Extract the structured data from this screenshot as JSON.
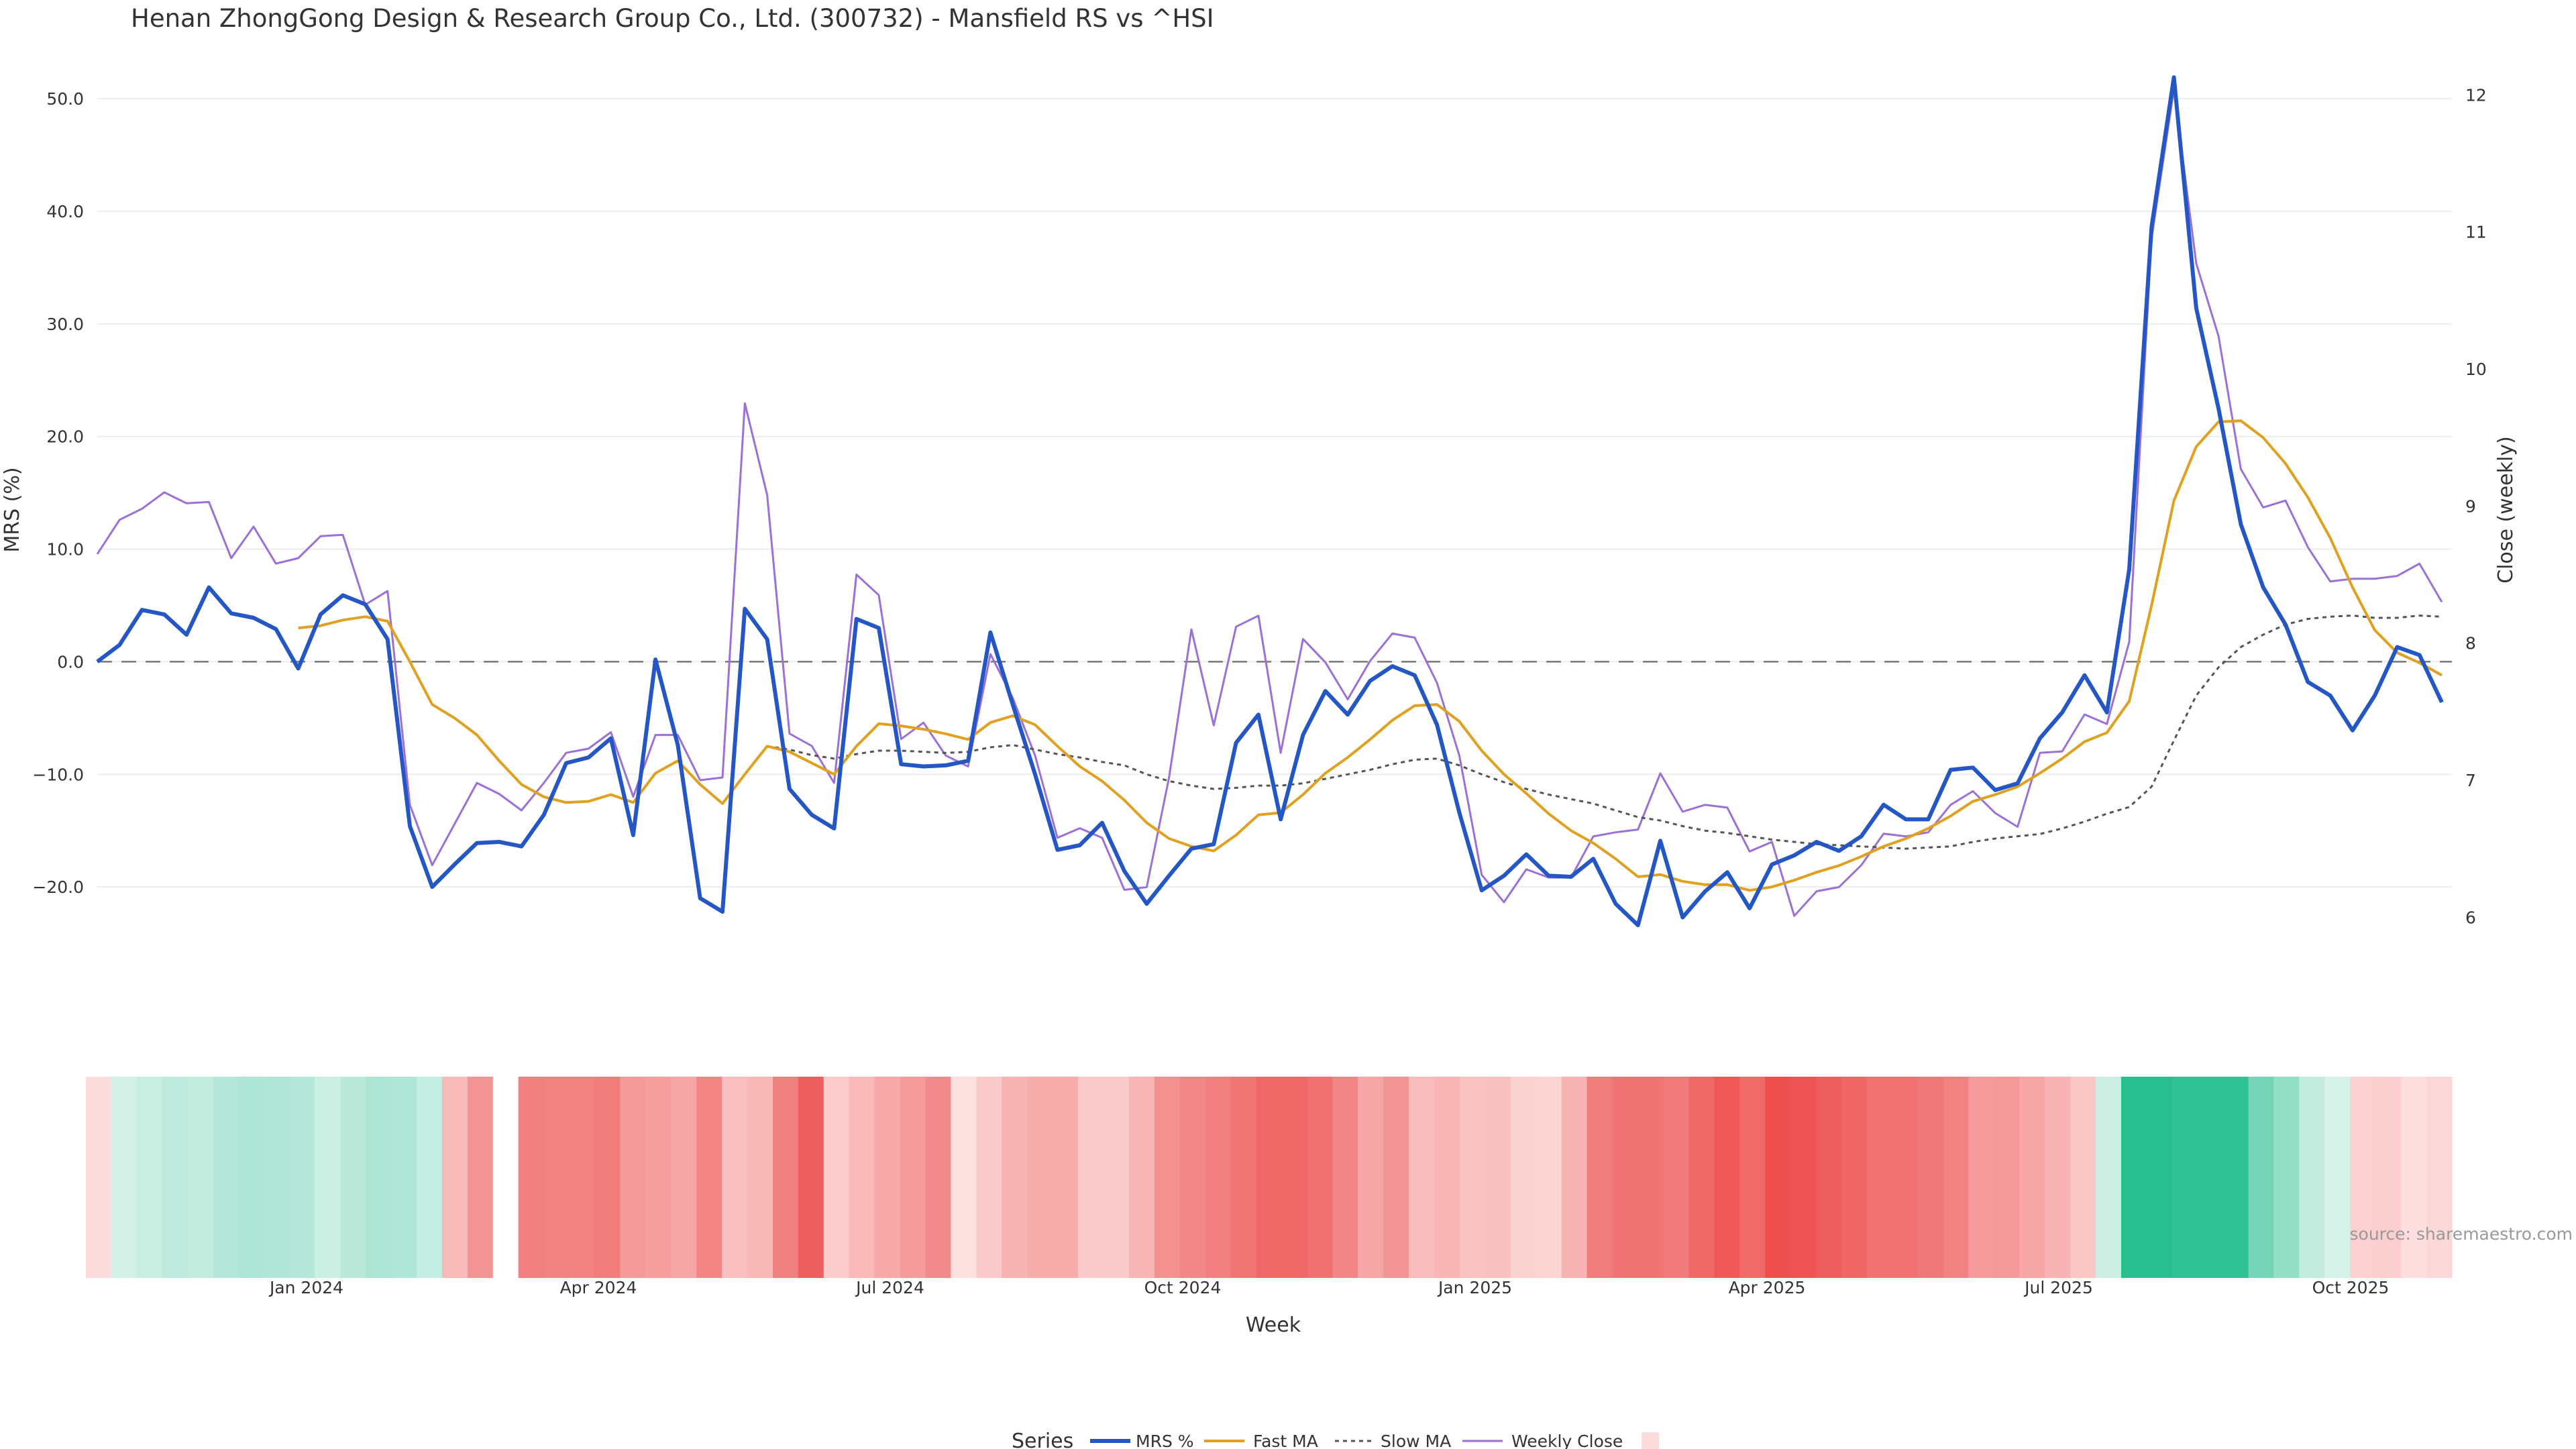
{
  "chart_data": {
    "type": "line",
    "title": "Henan ZhongGong Design & Research Group Co., Ltd. (300732) - Mansfield RS vs ^HSI",
    "xlabel": "Week",
    "ylabel_left": "MRS (%)",
    "ylabel_right": "Close (weekly)",
    "ylim_left": [
      -30,
      54
    ],
    "ylim_right": [
      5.4,
      12.3
    ],
    "yticks_left": [
      "50.0",
      "40.0",
      "30.0",
      "20.0",
      "10.0",
      "0.0",
      "−10.0",
      "−20.0"
    ],
    "yticks_right": [
      "12",
      "11",
      "10",
      "9",
      "8",
      "7",
      "6"
    ],
    "xtick_labels": [
      "Jan 2024",
      "Apr 2024",
      "Jul 2024",
      "Oct 2024",
      "Jan 2025",
      "Apr 2025",
      "Jul 2025",
      "Oct 2025"
    ],
    "zero_line": 0,
    "grid": true,
    "legend": {
      "title": "Series",
      "placement": "bottom-center"
    },
    "source": "source: sharemaestro.com",
    "series": [
      {
        "name": "MRS %",
        "axis": "left",
        "color": "#2457c5",
        "values": [
          0.0,
          1.5,
          4.6,
          4.2,
          2.4,
          6.6,
          4.3,
          3.9,
          2.9,
          -0.6,
          4.2,
          5.9,
          5.1,
          2.0,
          -14.6,
          -20.0,
          -18.0,
          -16.1,
          -16.0,
          -16.4,
          -13.6,
          -9.0,
          -8.5,
          -6.8,
          -15.4,
          0.2,
          -7.4,
          -21.0,
          -22.2,
          4.7,
          2.0,
          -11.3,
          -13.6,
          -14.8,
          3.8,
          3.0,
          -9.1,
          -9.3,
          -9.2,
          -8.8,
          2.6,
          -3.8,
          -10.0,
          -16.7,
          -16.3,
          -14.3,
          -18.6,
          -21.5,
          -19.0,
          -16.6,
          -16.2,
          -7.2,
          -4.7,
          -14.0,
          -6.5,
          -2.6,
          -4.7,
          -1.7,
          -0.4,
          -1.2,
          -5.6,
          -13.4,
          -20.3,
          -19.0,
          -17.1,
          -19.0,
          -19.1,
          -17.5,
          -21.5,
          -23.4,
          -15.9,
          -22.7,
          -20.4,
          -18.7,
          -21.9,
          -18.0,
          -17.2,
          -16.0,
          -16.8,
          -15.5,
          -12.7,
          -14.0,
          -14.0,
          -9.6,
          -9.4,
          -11.4,
          -10.8,
          -6.8,
          -4.5,
          -1.2,
          -4.5,
          8.2,
          38.6,
          51.9,
          31.4,
          22.5,
          12.2,
          6.6,
          3.3,
          -1.8,
          -3.0,
          -6.1,
          -3.0,
          1.3,
          0.6,
          -3.6
        ]
      },
      {
        "name": "Fast MA",
        "axis": "left",
        "color": "#e0a020",
        "values": [
          null,
          null,
          null,
          null,
          null,
          null,
          null,
          null,
          null,
          3.0,
          3.2,
          3.7,
          4.0,
          3.6,
          0.0,
          -3.8,
          -5.0,
          -6.5,
          -8.8,
          -10.9,
          -12.0,
          -12.5,
          -12.4,
          -11.8,
          -12.5,
          -9.9,
          -8.8,
          -10.9,
          -12.6,
          -10.0,
          -7.5,
          -8.0,
          -9.0,
          -10.0,
          -7.5,
          -5.5,
          -5.7,
          -6.0,
          -6.4,
          -6.9,
          -5.4,
          -4.8,
          -5.6,
          -7.5,
          -9.3,
          -10.6,
          -12.3,
          -14.3,
          -15.7,
          -16.4,
          -16.8,
          -15.4,
          -13.6,
          -13.4,
          -11.8,
          -9.9,
          -8.5,
          -6.9,
          -5.2,
          -3.9,
          -3.8,
          -5.3,
          -7.9,
          -10.0,
          -11.7,
          -13.5,
          -15.0,
          -16.1,
          -17.5,
          -19.1,
          -18.9,
          -19.5,
          -19.8,
          -19.8,
          -20.3,
          -20.0,
          -19.4,
          -18.7,
          -18.1,
          -17.3,
          -16.4,
          -15.7,
          -14.8,
          -13.7,
          -12.4,
          -11.8,
          -11.1,
          -9.9,
          -8.6,
          -7.1,
          -6.3,
          -3.5,
          5.0,
          14.3,
          19.1,
          21.3,
          21.4,
          19.9,
          17.6,
          14.6,
          11.0,
          6.6,
          2.8,
          0.8,
          -0.1,
          -1.2
        ]
      },
      {
        "name": "Slow MA",
        "axis": "left",
        "color": "#555555",
        "dash": true,
        "values": [
          null,
          null,
          null,
          null,
          null,
          null,
          null,
          null,
          null,
          null,
          null,
          null,
          null,
          null,
          null,
          null,
          null,
          null,
          null,
          null,
          null,
          null,
          null,
          null,
          null,
          null,
          null,
          null,
          null,
          null,
          -7.5,
          -7.8,
          -8.3,
          -8.6,
          -8.2,
          -7.9,
          -7.9,
          -8.0,
          -8.1,
          -8.0,
          -7.6,
          -7.4,
          -7.8,
          -8.2,
          -8.5,
          -8.9,
          -9.2,
          -10.0,
          -10.6,
          -11.0,
          -11.3,
          -11.2,
          -11.0,
          -11.0,
          -10.8,
          -10.4,
          -10.0,
          -9.6,
          -9.1,
          -8.7,
          -8.6,
          -9.2,
          -10.0,
          -10.7,
          -11.3,
          -11.8,
          -12.2,
          -12.6,
          -13.2,
          -13.8,
          -14.1,
          -14.6,
          -15.0,
          -15.2,
          -15.5,
          -15.8,
          -16.0,
          -16.2,
          -16.3,
          -16.4,
          -16.5,
          -16.6,
          -16.5,
          -16.4,
          -16.0,
          -15.7,
          -15.5,
          -15.3,
          -14.8,
          -14.2,
          -13.5,
          -12.9,
          -11.1,
          -7.0,
          -3.0,
          -0.5,
          1.3,
          2.4,
          3.3,
          3.8,
          4.0,
          4.1,
          3.9,
          3.9,
          4.1,
          4.0
        ]
      },
      {
        "name": "Weekly Close",
        "axis": "right",
        "color": "#9b70d8",
        "values": [
          8.65,
          8.9,
          8.98,
          9.1,
          9.02,
          9.03,
          8.62,
          8.85,
          8.58,
          8.62,
          8.78,
          8.79,
          8.28,
          8.38,
          6.82,
          6.38,
          6.68,
          6.98,
          6.9,
          6.78,
          6.98,
          7.2,
          7.23,
          7.35,
          6.88,
          7.33,
          7.33,
          7.0,
          7.02,
          9.75,
          9.08,
          7.34,
          7.25,
          6.98,
          8.5,
          8.35,
          7.3,
          7.42,
          7.18,
          7.1,
          7.92,
          7.6,
          7.18,
          6.58,
          6.65,
          6.58,
          6.2,
          6.22,
          7.02,
          8.1,
          7.4,
          8.12,
          8.2,
          7.2,
          8.03,
          7.86,
          7.59,
          7.87,
          8.07,
          8.04,
          7.71,
          7.18,
          6.31,
          6.11,
          6.35,
          6.29,
          6.29,
          6.59,
          6.62,
          6.64,
          7.05,
          6.77,
          6.82,
          6.8,
          6.48,
          6.55,
          6.01,
          6.19,
          6.22,
          6.38,
          6.61,
          6.59,
          6.62,
          6.82,
          6.92,
          6.76,
          6.66,
          7.2,
          7.21,
          7.48,
          7.41,
          8.01,
          10.95,
          12.04,
          10.77,
          10.24,
          9.27,
          8.99,
          9.04,
          8.7,
          8.45,
          8.47,
          8.47,
          8.49,
          8.58,
          8.3
        ]
      }
    ],
    "heatmap": {
      "name": "Mansfield RS strip",
      "cells": [
        {
          "week": 0,
          "color": "#fcdcdc"
        },
        {
          "week": 1,
          "color": "#d4f1e7"
        },
        {
          "week": 2,
          "color": "#c8eee2"
        },
        {
          "week": 3,
          "color": "#bdeadc"
        },
        {
          "week": 4,
          "color": "#c3ecdf"
        },
        {
          "week": 5,
          "color": "#b6e8d9"
        },
        {
          "week": 6,
          "color": "#aee6d5"
        },
        {
          "week": 7,
          "color": "#b1e7d6"
        },
        {
          "week": 8,
          "color": "#b5e8d8"
        },
        {
          "week": 9,
          "color": "#ccf0e4"
        },
        {
          "week": 10,
          "color": "#bae9da"
        },
        {
          "week": 11,
          "color": "#ade5d4"
        },
        {
          "week": 12,
          "color": "#b0e6d6"
        },
        {
          "week": 13,
          "color": "#c6ede1"
        },
        {
          "week": 14,
          "color": "#f8b9b9"
        },
        {
          "week": 15,
          "color": "#f49393"
        },
        {
          "week": 16,
          "color": "#ffffff"
        },
        {
          "week": 17,
          "color": "#f27f7f"
        },
        {
          "week": 18,
          "color": "#f28282"
        },
        {
          "week": 19,
          "color": "#f28282"
        },
        {
          "week": 20,
          "color": "#f17c7c"
        },
        {
          "week": 21,
          "color": "#f49a9a"
        },
        {
          "week": 22,
          "color": "#f59f9f"
        },
        {
          "week": 23,
          "color": "#f6a6a6"
        },
        {
          "week": 24,
          "color": "#f28484"
        },
        {
          "week": 25,
          "color": "#f9bfbf"
        },
        {
          "week": 26,
          "color": "#f8b8b8"
        },
        {
          "week": 27,
          "color": "#f08080"
        },
        {
          "week": 28,
          "color": "#ee6060"
        },
        {
          "week": 29,
          "color": "#fccccc"
        },
        {
          "week": 30,
          "color": "#f9b9b9"
        },
        {
          "week": 31,
          "color": "#f7a9a9"
        },
        {
          "week": 32,
          "color": "#f59b9b"
        },
        {
          "week": 33,
          "color": "#f28c8c"
        },
        {
          "week": 34,
          "color": "#fde0e0"
        },
        {
          "week": 35,
          "color": "#fbcaca"
        },
        {
          "week": 36,
          "color": "#f8b3b3"
        },
        {
          "week": 37,
          "color": "#f7acac"
        },
        {
          "week": 38,
          "color": "#f7acac"
        },
        {
          "week": 39,
          "color": "#fbcbcb"
        },
        {
          "week": 40,
          "color": "#fbcbcb"
        },
        {
          "week": 41,
          "color": "#f8b5b5"
        },
        {
          "week": 42,
          "color": "#f39090"
        },
        {
          "week": 43,
          "color": "#f28787"
        },
        {
          "week": 44,
          "color": "#f28080"
        },
        {
          "week": 45,
          "color": "#f17575"
        },
        {
          "week": 46,
          "color": "#f06868"
        },
        {
          "week": 47,
          "color": "#f06868"
        },
        {
          "week": 48,
          "color": "#f17070"
        },
        {
          "week": 49,
          "color": "#f28585"
        },
        {
          "week": 50,
          "color": "#f7a6a6"
        },
        {
          "week": 51,
          "color": "#f39494"
        },
        {
          "week": 52,
          "color": "#f9bcbc"
        },
        {
          "week": 53,
          "color": "#f8b6b6"
        },
        {
          "week": 54,
          "color": "#f9c2c2"
        },
        {
          "week": 55,
          "color": "#f9c0c0"
        },
        {
          "week": 56,
          "color": "#fbd2d2"
        },
        {
          "week": 57,
          "color": "#fbd4d4"
        },
        {
          "week": 58,
          "color": "#f8b4b4"
        },
        {
          "week": 59,
          "color": "#f17c7c"
        },
        {
          "week": 60,
          "color": "#f07474"
        },
        {
          "week": 61,
          "color": "#f07474"
        },
        {
          "week": 62,
          "color": "#f17a7a"
        },
        {
          "week": 63,
          "color": "#f06868"
        },
        {
          "week": 64,
          "color": "#ef5858"
        },
        {
          "week": 65,
          "color": "#f06a6a"
        },
        {
          "week": 66,
          "color": "#ee5050"
        },
        {
          "week": 67,
          "color": "#ee5252"
        },
        {
          "week": 68,
          "color": "#ef5e5e"
        },
        {
          "week": 69,
          "color": "#f06666"
        },
        {
          "week": 70,
          "color": "#f17272"
        },
        {
          "week": 71,
          "color": "#f17272"
        },
        {
          "week": 72,
          "color": "#f17878"
        },
        {
          "week": 73,
          "color": "#f28282"
        },
        {
          "week": 74,
          "color": "#f59b9b"
        },
        {
          "week": 75,
          "color": "#f59898"
        },
        {
          "week": 76,
          "color": "#f7a6a6"
        },
        {
          "week": 77,
          "color": "#f8b4b4"
        },
        {
          "week": 78,
          "color": "#fbc6c6"
        },
        {
          "week": 79,
          "color": "#cdeee3"
        },
        {
          "week": 80,
          "color": "#27c08e"
        },
        {
          "week": 81,
          "color": "#27c08e"
        },
        {
          "week": 82,
          "color": "#2ec292"
        },
        {
          "week": 83,
          "color": "#2ec292"
        },
        {
          "week": 84,
          "color": "#2ec292"
        },
        {
          "week": 85,
          "color": "#74d6b6"
        },
        {
          "week": 86,
          "color": "#95dfc6"
        },
        {
          "week": 87,
          "color": "#c3ecde"
        },
        {
          "week": 88,
          "color": "#d7f2e9"
        },
        {
          "week": 89,
          "color": "#fcd0d0"
        },
        {
          "week": 90,
          "color": "#fbcfcf"
        },
        {
          "week": 91,
          "color": "#fddede"
        },
        {
          "week": 92,
          "color": "#fdd8d8"
        }
      ]
    }
  },
  "legend": {
    "title": "Series",
    "items": [
      "MRS %",
      "Fast MA",
      "Slow MA",
      "Weekly Close",
      ""
    ]
  }
}
